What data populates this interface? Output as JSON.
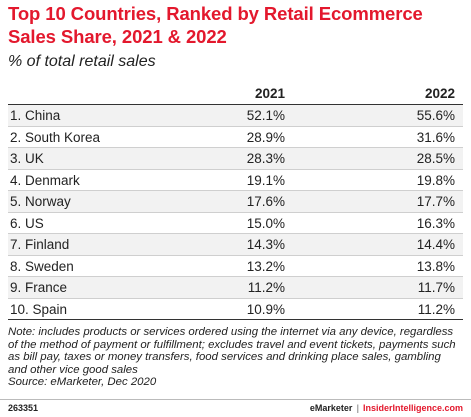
{
  "chart_data": {
    "type": "table",
    "title": "Top 10 Countries, Ranked by Retail Ecommerce Sales Share, 2021 & 2022",
    "subtitle": "% of total retail sales",
    "columns": [
      "2021",
      "2022"
    ],
    "rows": [
      {
        "label": "1. China",
        "v2021": "52.1%",
        "v2022": "55.6%"
      },
      {
        "label": "2. South Korea",
        "v2021": "28.9%",
        "v2022": "31.6%"
      },
      {
        "label": "3. UK",
        "v2021": "28.3%",
        "v2022": "28.5%"
      },
      {
        "label": "4. Denmark",
        "v2021": "19.1%",
        "v2022": "19.8%"
      },
      {
        "label": "5. Norway",
        "v2021": "17.6%",
        "v2022": "17.7%"
      },
      {
        "label": "6. US",
        "v2021": "15.0%",
        "v2022": "16.3%"
      },
      {
        "label": "7. Finland",
        "v2021": "14.3%",
        "v2022": "14.4%"
      },
      {
        "label": "8. Sweden",
        "v2021": "13.2%",
        "v2022": "13.8%"
      },
      {
        "label": "9. France",
        "v2021": "11.2%",
        "v2022": "11.7%"
      },
      {
        "label": "10. Spain",
        "v2021": "10.9%",
        "v2022": "11.2%"
      }
    ],
    "note": "Note: includes products or services ordered using the internet via any device, regardless of the method of payment or fulfillment; excludes travel and event tickets, payments such as bill pay, taxes or money transfers, food services and drinking place sales, gambling and other vice good sales",
    "source": "Source: eMarketer, Dec 2020"
  },
  "footer": {
    "chart_id": "263351",
    "brand_emarketer": "eMarketer",
    "separator": "|",
    "brand_insider": "InsiderIntelligence.com"
  },
  "colors": {
    "title": "#e3182d",
    "row_shade": "#f2f2f2"
  }
}
